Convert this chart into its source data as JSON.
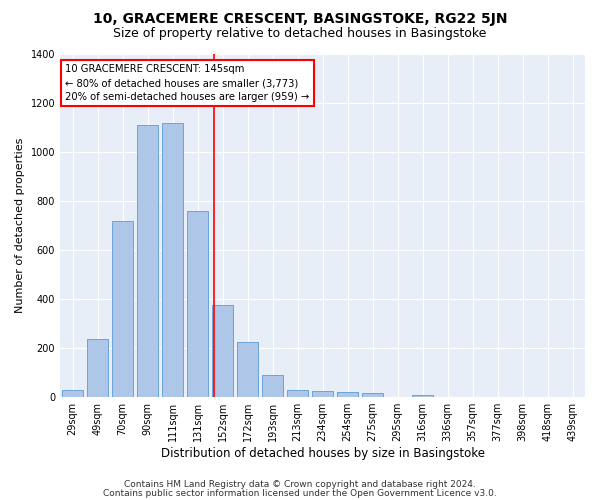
{
  "title": "10, GRACEMERE CRESCENT, BASINGSTOKE, RG22 5JN",
  "subtitle": "Size of property relative to detached houses in Basingstoke",
  "xlabel": "Distribution of detached houses by size in Basingstoke",
  "ylabel": "Number of detached properties",
  "categories": [
    "29sqm",
    "49sqm",
    "70sqm",
    "90sqm",
    "111sqm",
    "131sqm",
    "152sqm",
    "172sqm",
    "193sqm",
    "213sqm",
    "234sqm",
    "254sqm",
    "275sqm",
    "295sqm",
    "316sqm",
    "336sqm",
    "357sqm",
    "377sqm",
    "398sqm",
    "418sqm",
    "439sqm"
  ],
  "values": [
    30,
    235,
    720,
    1110,
    1120,
    760,
    375,
    225,
    90,
    30,
    25,
    20,
    15,
    0,
    10,
    0,
    0,
    0,
    0,
    0,
    0
  ],
  "bar_color": "#aec6e8",
  "bar_edge_color": "#5b9bd5",
  "vline_color": "red",
  "annotation_text": "10 GRACEMERE CRESCENT: 145sqm\n← 80% of detached houses are smaller (3,773)\n20% of semi-detached houses are larger (959) →",
  "annotation_box_color": "white",
  "annotation_box_edge_color": "red",
  "ylim": [
    0,
    1400
  ],
  "yticks": [
    0,
    200,
    400,
    600,
    800,
    1000,
    1200,
    1400
  ],
  "fig_bg_color": "#ffffff",
  "plot_bg_color": "#e8eef8",
  "footer1": "Contains HM Land Registry data © Crown copyright and database right 2024.",
  "footer2": "Contains public sector information licensed under the Open Government Licence v3.0.",
  "title_fontsize": 10,
  "subtitle_fontsize": 9,
  "xlabel_fontsize": 8.5,
  "ylabel_fontsize": 8,
  "tick_fontsize": 7,
  "footer_fontsize": 6.5
}
